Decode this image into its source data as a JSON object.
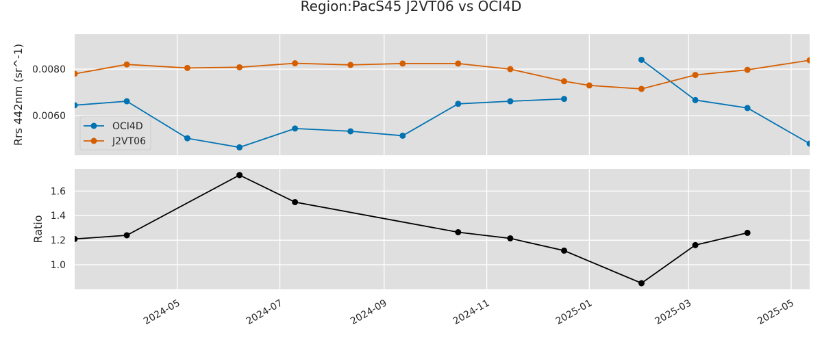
{
  "chart_data": [
    {
      "type": "line",
      "title": "Region:PacS45 J2VT06 vs OCI4D",
      "ylabel": "Rrs 442nm (sr^-1)",
      "ylim": [
        0.0043,
        0.0095
      ],
      "yticks": [
        0.006,
        0.008
      ],
      "ytick_labels": [
        "0.0060",
        "0.0080"
      ],
      "xlim": [
        "2024-03-01",
        "2025-05-12"
      ],
      "grid": true,
      "legend": "center-left",
      "series": [
        {
          "name": "OCI4D",
          "color": "#0072b2",
          "segments": [
            [
              {
                "x": "2024-03-01",
                "y": 0.00645
              },
              {
                "x": "2024-04-01",
                "y": 0.00662
              },
              {
                "x": "2024-05-07",
                "y": 0.00503
              },
              {
                "x": "2024-06-07",
                "y": 0.00464
              },
              {
                "x": "2024-07-10",
                "y": 0.00545
              },
              {
                "x": "2024-08-12",
                "y": 0.00533
              },
              {
                "x": "2024-09-12",
                "y": 0.00514
              },
              {
                "x": "2024-10-15",
                "y": 0.00651
              },
              {
                "x": "2024-11-15",
                "y": 0.00662
              },
              {
                "x": "2024-12-17",
                "y": 0.00672
              }
            ],
            [
              {
                "x": "2025-02-01",
                "y": 0.0084
              },
              {
                "x": "2025-03-05",
                "y": 0.00667
              },
              {
                "x": "2025-04-05",
                "y": 0.00633
              },
              {
                "x": "2025-05-12",
                "y": 0.0048
              }
            ]
          ]
        },
        {
          "name": "J2VT06",
          "color": "#d55e00",
          "segments": [
            [
              {
                "x": "2024-03-01",
                "y": 0.0078
              },
              {
                "x": "2024-04-01",
                "y": 0.0082
              },
              {
                "x": "2024-05-07",
                "y": 0.00805
              },
              {
                "x": "2024-06-07",
                "y": 0.00808
              },
              {
                "x": "2024-07-10",
                "y": 0.00825
              },
              {
                "x": "2024-08-12",
                "y": 0.00818
              },
              {
                "x": "2024-09-12",
                "y": 0.00824
              },
              {
                "x": "2024-10-15",
                "y": 0.00824
              },
              {
                "x": "2024-11-15",
                "y": 0.008
              },
              {
                "x": "2024-12-17",
                "y": 0.00748
              },
              {
                "x": "2025-01-01",
                "y": 0.0073
              },
              {
                "x": "2025-02-01",
                "y": 0.00715
              },
              {
                "x": "2025-03-05",
                "y": 0.00775
              },
              {
                "x": "2025-04-05",
                "y": 0.00797
              },
              {
                "x": "2025-05-12",
                "y": 0.00838
              }
            ]
          ]
        }
      ]
    },
    {
      "type": "line",
      "ylabel": "Ratio",
      "ylim": [
        0.8,
        1.78
      ],
      "yticks": [
        1.0,
        1.2,
        1.4,
        1.6
      ],
      "ytick_labels": [
        "1.0",
        "1.2",
        "1.4",
        "1.6"
      ],
      "xlim": [
        "2024-03-01",
        "2025-05-12"
      ],
      "xticks": [
        "2024-05-01",
        "2024-07-01",
        "2024-09-01",
        "2024-11-01",
        "2025-01-01",
        "2025-03-01",
        "2025-05-01"
      ],
      "xtick_labels": [
        "2024-05",
        "2024-07",
        "2024-09",
        "2024-11",
        "2025-01",
        "2025-03",
        "2025-05"
      ],
      "grid": true,
      "series": [
        {
          "color": "#000000",
          "segments": [
            [
              {
                "x": "2024-03-01",
                "y": 1.21
              },
              {
                "x": "2024-04-01",
                "y": 1.24
              },
              {
                "x": "2024-06-07",
                "y": 1.73
              },
              {
                "x": "2024-07-10",
                "y": 1.51
              },
              {
                "x": "2024-10-15",
                "y": 1.265
              },
              {
                "x": "2024-11-15",
                "y": 1.215
              },
              {
                "x": "2024-12-17",
                "y": 1.115
              },
              {
                "x": "2025-02-01",
                "y": 0.85
              },
              {
                "x": "2025-03-05",
                "y": 1.16
              },
              {
                "x": "2025-04-05",
                "y": 1.26
              }
            ]
          ]
        }
      ]
    }
  ]
}
